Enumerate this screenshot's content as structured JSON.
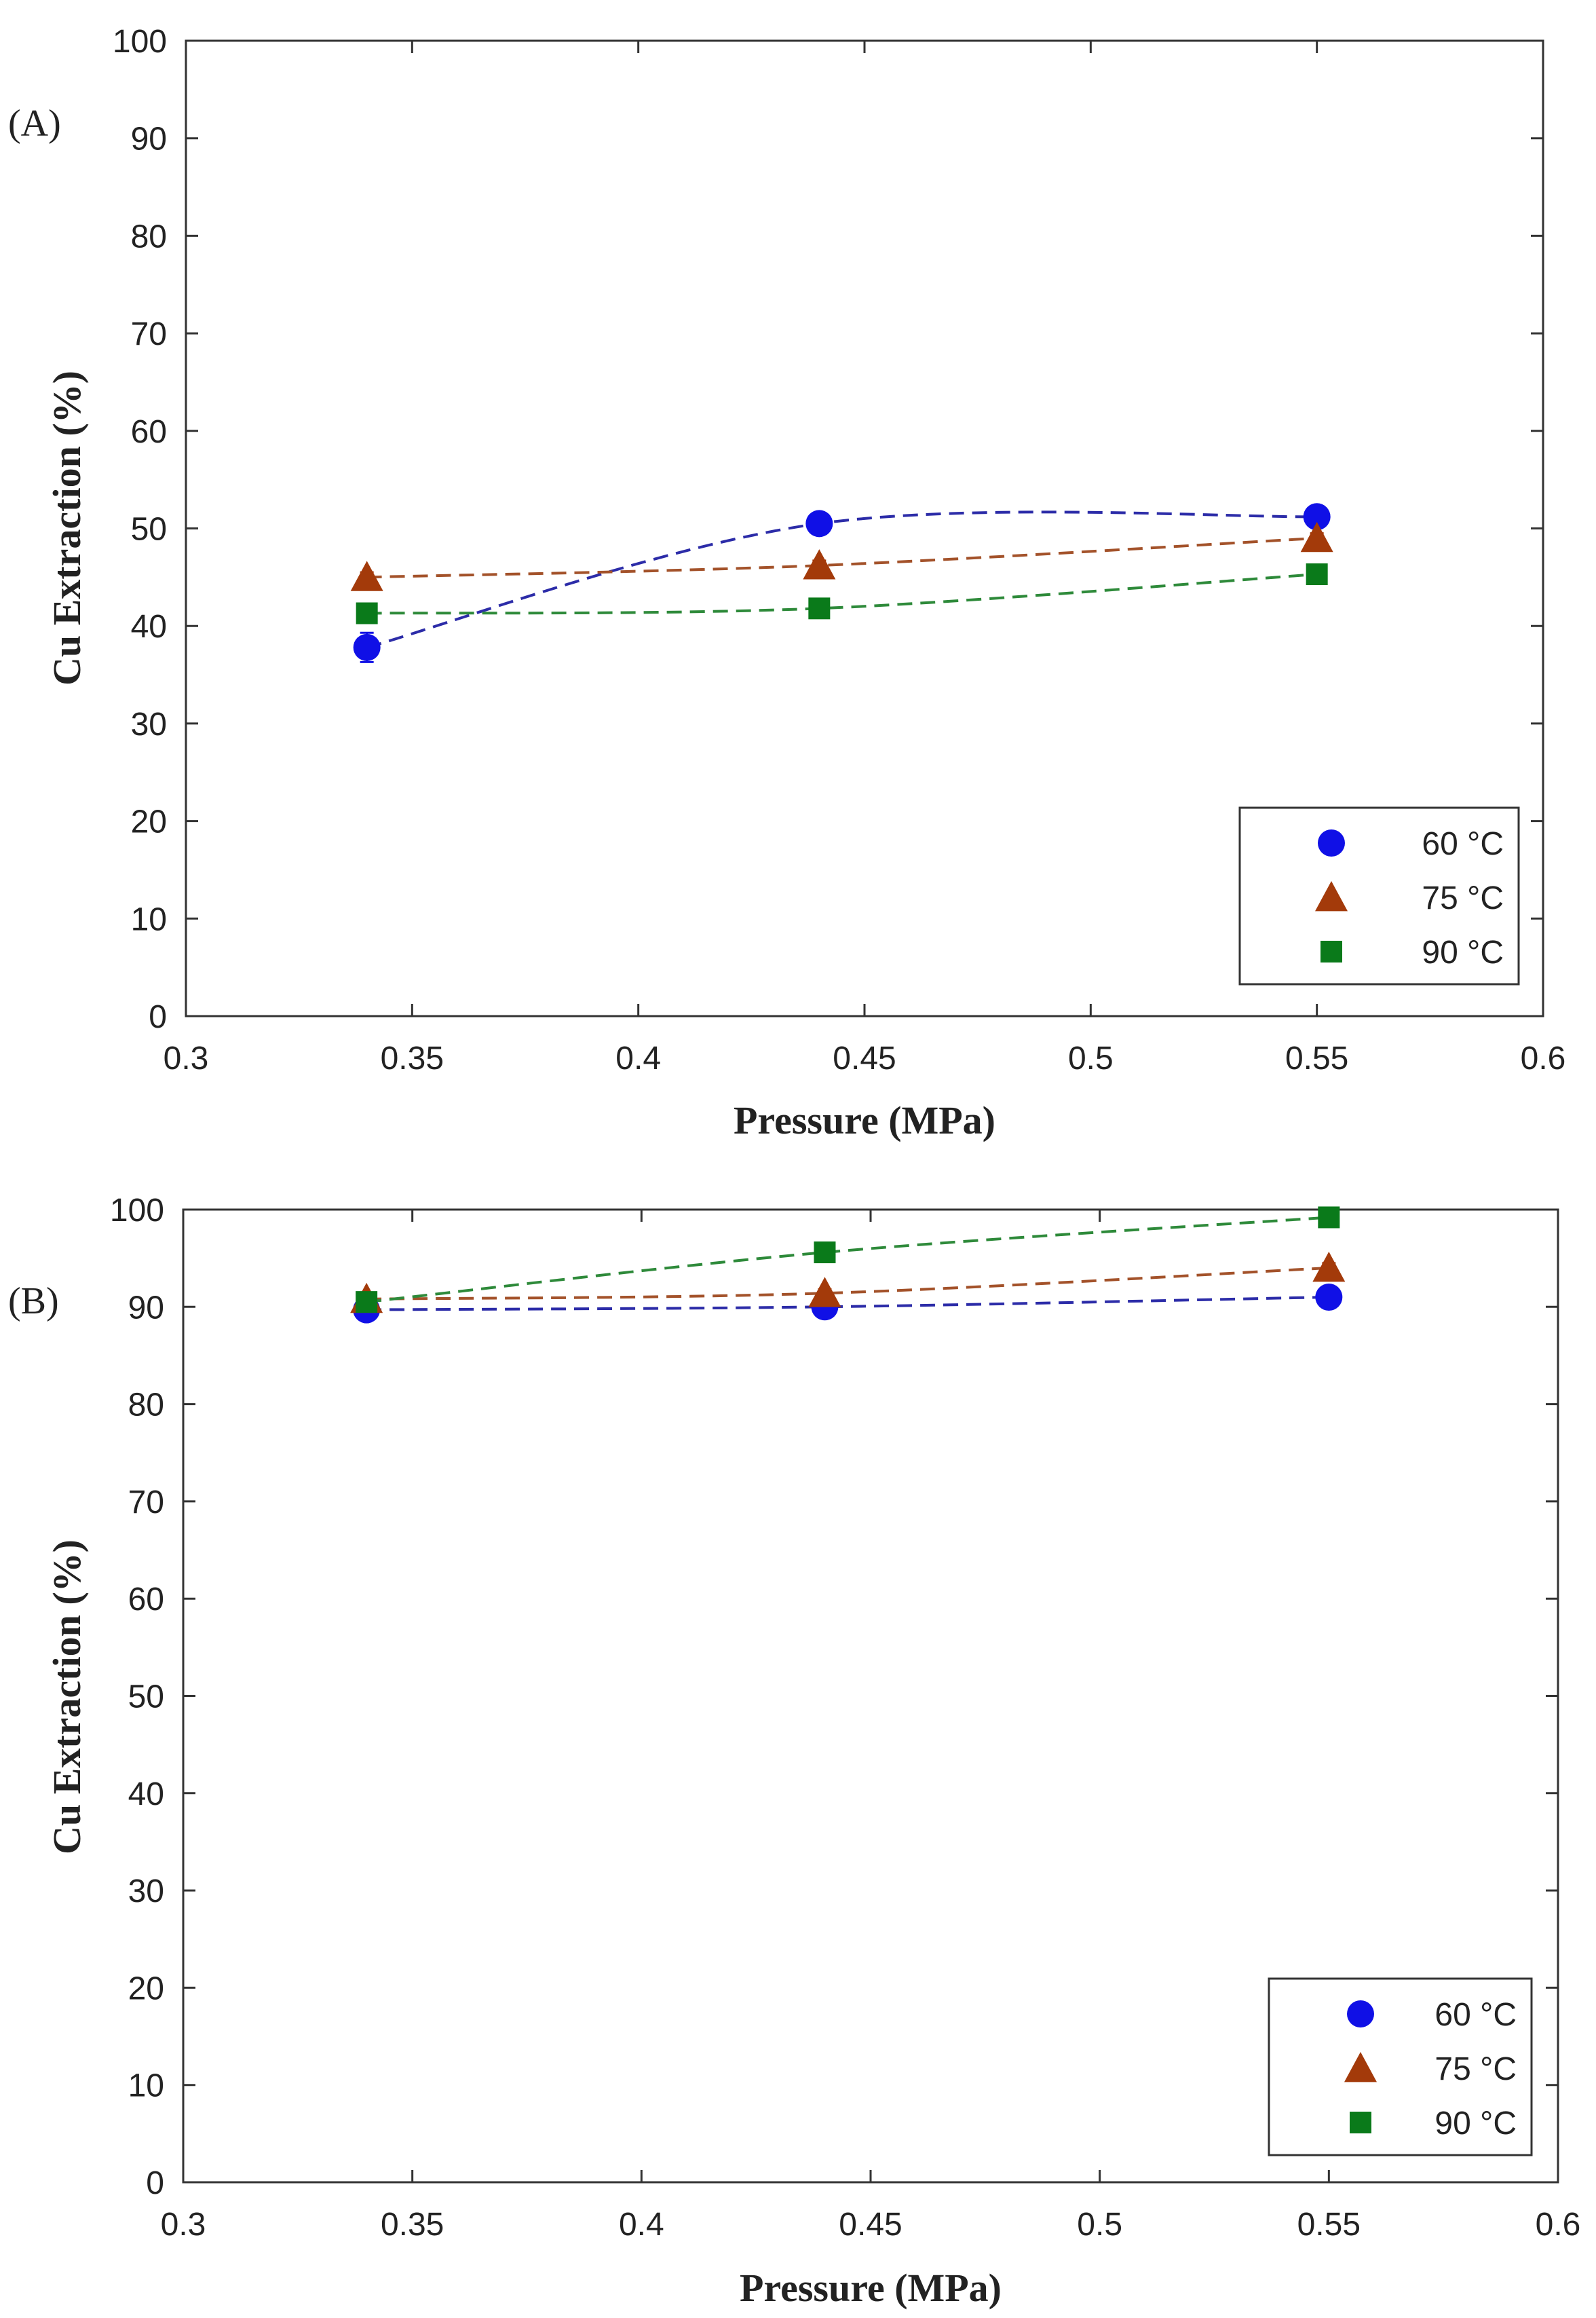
{
  "chart_data": [
    {
      "type": "line",
      "panel_label": "(A)",
      "xlabel": "Pressure (MPa)",
      "ylabel": "Cu Extraction (%)",
      "xlim": [
        0.3,
        0.6
      ],
      "ylim": [
        0,
        100
      ],
      "xticks": [
        0.3,
        0.35,
        0.4,
        0.45,
        0.5,
        0.55,
        0.6
      ],
      "xtick_labels": [
        "0.3",
        "0.35",
        "0.4",
        "0.45",
        "0.5",
        "0.55",
        "0.6"
      ],
      "yticks": [
        0,
        10,
        20,
        30,
        40,
        50,
        60,
        70,
        80,
        90,
        100
      ],
      "ytick_labels": [
        "0",
        "10",
        "20",
        "30",
        "40",
        "50",
        "60",
        "70",
        "80",
        "90",
        "100"
      ],
      "grid": false,
      "legend_position": "bottom-right",
      "series": [
        {
          "name": "60 °C",
          "marker": "circle",
          "color": "#1010e6",
          "line_color": "#2c2ca8",
          "x": [
            0.34,
            0.44,
            0.55
          ],
          "y": [
            37.8,
            50.5,
            51.2
          ],
          "error": [
            1.5,
            0.5,
            0.5
          ]
        },
        {
          "name": "75 °C",
          "marker": "triangle",
          "color": "#a33a0a",
          "line_color": "#a3522a",
          "x": [
            0.34,
            0.44,
            0.55
          ],
          "y": [
            45.0,
            46.2,
            49.0
          ],
          "error": [
            0.5,
            0.5,
            0.5
          ]
        },
        {
          "name": "90 °C",
          "marker": "square",
          "color": "#0a7a1a",
          "line_color": "#2e8a3a",
          "x": [
            0.34,
            0.44,
            0.55
          ],
          "y": [
            41.3,
            41.8,
            45.3
          ],
          "error": [
            0.3,
            0.3,
            0.3
          ]
        }
      ]
    },
    {
      "type": "line",
      "panel_label": "(B)",
      "xlabel": "Pressure (MPa)",
      "ylabel": "Cu Extraction (%)",
      "xlim": [
        0.3,
        0.6
      ],
      "ylim": [
        0,
        100
      ],
      "xticks": [
        0.3,
        0.35,
        0.4,
        0.45,
        0.5,
        0.55,
        0.6
      ],
      "xtick_labels": [
        "0.3",
        "0.35",
        "0.4",
        "0.45",
        "0.5",
        "0.55",
        "0.6"
      ],
      "yticks": [
        0,
        10,
        20,
        30,
        40,
        50,
        60,
        70,
        80,
        90,
        100
      ],
      "ytick_labels": [
        "0",
        "10",
        "20",
        "30",
        "40",
        "50",
        "60",
        "70",
        "80",
        "90",
        "100"
      ],
      "grid": false,
      "legend_position": "bottom-right",
      "series": [
        {
          "name": "60 °C",
          "marker": "circle",
          "color": "#1010e6",
          "line_color": "#2c2ca8",
          "x": [
            0.34,
            0.44,
            0.55
          ],
          "y": [
            89.7,
            90.0,
            91.0
          ],
          "error": [
            0.3,
            0.3,
            0.3
          ]
        },
        {
          "name": "75 °C",
          "marker": "triangle",
          "color": "#a33a0a",
          "line_color": "#a3522a",
          "x": [
            0.34,
            0.44,
            0.55
          ],
          "y": [
            90.8,
            91.4,
            94.0
          ],
          "error": [
            0.4,
            0.4,
            0.5
          ]
        },
        {
          "name": "90 °C",
          "marker": "square",
          "color": "#0a7a1a",
          "line_color": "#2e8a3a",
          "x": [
            0.34,
            0.44,
            0.55
          ],
          "y": [
            90.5,
            95.6,
            99.2
          ],
          "error": [
            0.3,
            0.3,
            0.3
          ]
        }
      ]
    }
  ]
}
